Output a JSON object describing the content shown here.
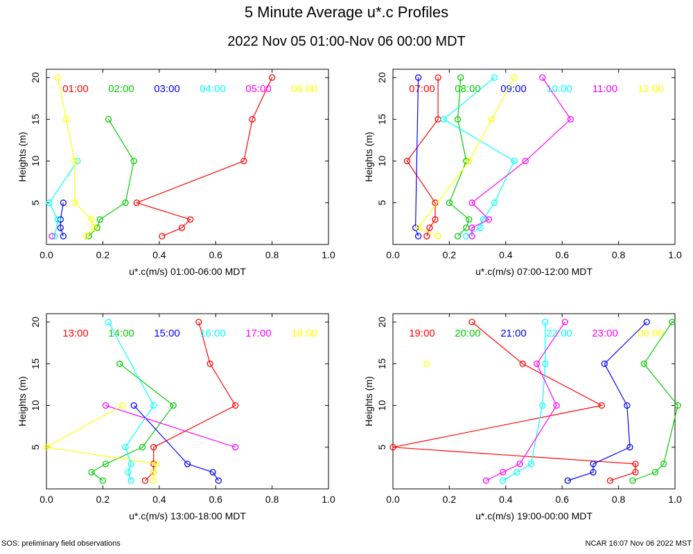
{
  "title": "5 Minute Average u*.c Profiles",
  "subtitle": "2022 Nov 05 01:00-Nov 06 00:00 MDT",
  "footer": {
    "left": "SOS: preliminary field observations",
    "right": "NCAR 16:07 Nov 06 2022 MST"
  },
  "chart_data": [
    {
      "type": "line",
      "xlabel": "u*.c(m/s) 01:00-06:00 MDT",
      "ylabel": "Heights (m)",
      "xlim": [
        0,
        1.0
      ],
      "ylim": [
        0,
        21
      ],
      "xticks": [
        "0.0",
        "0.2",
        "0.4",
        "0.6",
        "0.8",
        "1.0"
      ],
      "yticks": [
        "5",
        "10",
        "15",
        "20"
      ],
      "series": [
        {
          "name": "01:00",
          "color": "#ff0000",
          "points": [
            [
              0.41,
              1
            ],
            [
              0.48,
              2
            ],
            [
              0.51,
              3
            ],
            [
              0.32,
              5
            ],
            [
              0.7,
              10
            ],
            [
              0.73,
              15
            ],
            [
              0.8,
              20
            ]
          ]
        },
        {
          "name": "02:00",
          "color": "#00cc00",
          "points": [
            [
              0.15,
              1
            ],
            [
              0.18,
              2
            ],
            [
              0.19,
              3
            ],
            [
              0.28,
              5
            ],
            [
              0.31,
              10
            ],
            [
              0.22,
              15
            ]
          ]
        },
        {
          "name": "03:00",
          "color": "#0000ff",
          "points": [
            [
              0.06,
              1
            ],
            [
              0.05,
              2
            ],
            [
              0.05,
              3
            ],
            [
              0.06,
              5
            ]
          ]
        },
        {
          "name": "04:00",
          "color": "#00ffff",
          "points": [
            [
              0.03,
              1
            ],
            [
              0.04,
              3
            ],
            [
              0.01,
              5
            ],
            [
              0.11,
              10
            ]
          ]
        },
        {
          "name": "05:00",
          "color": "#ff00ff",
          "points": [
            [
              0.02,
              1
            ]
          ]
        },
        {
          "name": "06:00",
          "color": "#ffff00",
          "points": [
            [
              0.14,
              1
            ],
            [
              0.17,
              2
            ],
            [
              0.16,
              3
            ],
            [
              0.1,
              5
            ],
            [
              0.1,
              10
            ],
            [
              0.07,
              15
            ],
            [
              0.04,
              20
            ]
          ]
        }
      ]
    },
    {
      "type": "line",
      "xlabel": "u*.c(m/s) 07:00-12:00 MDT",
      "ylabel": "Heights (m)",
      "xlim": [
        0,
        1.0
      ],
      "ylim": [
        0,
        21
      ],
      "xticks": [
        "0.0",
        "0.2",
        "0.4",
        "0.6",
        "0.8",
        "1.0"
      ],
      "yticks": [
        "5",
        "10",
        "15",
        "20"
      ],
      "series": [
        {
          "name": "07:00",
          "color": "#ff0000",
          "points": [
            [
              0.12,
              1
            ],
            [
              0.13,
              2
            ],
            [
              0.15,
              3
            ],
            [
              0.15,
              5
            ],
            [
              0.05,
              10
            ],
            [
              0.16,
              15
            ],
            [
              0.16,
              20
            ]
          ]
        },
        {
          "name": "08:00",
          "color": "#00cc00",
          "points": [
            [
              0.23,
              1
            ],
            [
              0.26,
              2
            ],
            [
              0.27,
              3
            ],
            [
              0.2,
              5
            ],
            [
              0.26,
              10
            ],
            [
              0.23,
              15
            ],
            [
              0.24,
              20
            ]
          ]
        },
        {
          "name": "09:00",
          "color": "#0000ff",
          "points": [
            [
              0.09,
              1
            ],
            [
              0.08,
              2
            ],
            [
              0.09,
              20
            ]
          ]
        },
        {
          "name": "10:00",
          "color": "#00ffff",
          "points": [
            [
              0.26,
              1
            ],
            [
              0.31,
              2
            ],
            [
              0.32,
              3
            ],
            [
              0.36,
              5
            ],
            [
              0.43,
              10
            ],
            [
              0.18,
              15
            ],
            [
              0.36,
              20
            ]
          ]
        },
        {
          "name": "11:00",
          "color": "#ff00ff",
          "points": [
            [
              0.28,
              1
            ],
            [
              0.28,
              2
            ],
            [
              0.34,
              3
            ],
            [
              0.28,
              5
            ],
            [
              0.47,
              10
            ],
            [
              0.63,
              15
            ],
            [
              0.53,
              20
            ]
          ]
        },
        {
          "name": "12:00",
          "color": "#ffff00",
          "points": [
            [
              0.16,
              1
            ],
            [
              0.09,
              2
            ],
            [
              0.27,
              10
            ],
            [
              0.35,
              15
            ],
            [
              0.43,
              20
            ]
          ]
        }
      ]
    },
    {
      "type": "line",
      "xlabel": "u*.c(m/s) 13:00-18:00 MDT",
      "ylabel": "Heights (m)",
      "xlim": [
        0,
        1.0
      ],
      "ylim": [
        0,
        21
      ],
      "xticks": [
        "0.0",
        "0.2",
        "0.4",
        "0.6",
        "0.8",
        "1.0"
      ],
      "yticks": [
        "5",
        "10",
        "15",
        "20"
      ],
      "series": [
        {
          "name": "13:00",
          "color": "#ff0000",
          "points": [
            [
              0.35,
              1
            ],
            [
              0.38,
              2
            ],
            [
              0.38,
              3
            ],
            [
              0.38,
              5
            ],
            [
              0.67,
              10
            ],
            [
              0.58,
              15
            ],
            [
              0.54,
              20
            ]
          ]
        },
        {
          "name": "14:00",
          "color": "#00cc00",
          "points": [
            [
              0.2,
              1
            ],
            [
              0.16,
              2
            ],
            [
              0.21,
              3
            ],
            [
              0.34,
              5
            ],
            [
              0.45,
              10
            ],
            [
              0.26,
              15
            ]
          ]
        },
        {
          "name": "15:00",
          "color": "#0000ff",
          "points": [
            [
              0.61,
              1
            ],
            [
              0.59,
              2
            ],
            [
              0.5,
              3
            ],
            [
              0.31,
              10
            ]
          ]
        },
        {
          "name": "16:00",
          "color": "#00ffff",
          "points": [
            [
              0.3,
              1
            ],
            [
              0.29,
              2
            ],
            [
              0.3,
              3
            ],
            [
              0.28,
              5
            ],
            [
              0.38,
              10
            ],
            [
              0.22,
              20
            ]
          ]
        },
        {
          "name": "17:00",
          "color": "#ff00ff",
          "points": [
            [
              0.67,
              5
            ],
            [
              0.21,
              10
            ]
          ]
        },
        {
          "name": "18:00",
          "color": "#ffff00",
          "points": [
            [
              0.38,
              1
            ],
            [
              0.38,
              2
            ],
            [
              0.39,
              3
            ],
            [
              0.0,
              5
            ],
            [
              0.27,
              10
            ]
          ]
        }
      ]
    },
    {
      "type": "line",
      "xlabel": "u*.c(m/s) 19:00-00:00 MDT",
      "ylabel": "Heights (m)",
      "xlim": [
        0,
        1.0
      ],
      "ylim": [
        0,
        21
      ],
      "xticks": [
        "0.0",
        "0.2",
        "0.4",
        "0.6",
        "0.8",
        "1.0"
      ],
      "yticks": [
        "5",
        "10",
        "15",
        "20"
      ],
      "series": [
        {
          "name": "19:00",
          "color": "#ff0000",
          "points": [
            [
              0.77,
              1
            ],
            [
              0.86,
              2
            ],
            [
              0.86,
              3
            ],
            [
              0.0,
              5
            ],
            [
              0.74,
              10
            ],
            [
              0.46,
              15
            ],
            [
              0.28,
              20
            ]
          ]
        },
        {
          "name": "20:00",
          "color": "#00cc00",
          "points": [
            [
              0.85,
              1
            ],
            [
              0.93,
              2
            ],
            [
              0.96,
              3
            ],
            [
              1.01,
              10
            ],
            [
              0.89,
              15
            ],
            [
              0.99,
              20
            ]
          ]
        },
        {
          "name": "21:00",
          "color": "#0000ff",
          "points": [
            [
              0.62,
              1
            ],
            [
              0.71,
              2
            ],
            [
              0.71,
              3
            ],
            [
              0.84,
              5
            ],
            [
              0.83,
              10
            ],
            [
              0.75,
              15
            ],
            [
              0.9,
              20
            ]
          ]
        },
        {
          "name": "22:00",
          "color": "#00ffff",
          "points": [
            [
              0.39,
              1
            ],
            [
              0.44,
              2
            ],
            [
              0.49,
              3
            ],
            [
              0.53,
              10
            ],
            [
              0.54,
              15
            ],
            [
              0.54,
              20
            ]
          ]
        },
        {
          "name": "23:00",
          "color": "#ff00ff",
          "points": [
            [
              0.33,
              1
            ],
            [
              0.39,
              2
            ],
            [
              0.45,
              3
            ],
            [
              0.58,
              10
            ],
            [
              0.51,
              15
            ],
            [
              0.61,
              20
            ]
          ]
        },
        {
          "name": "00:00",
          "color": "#ffff00",
          "points": [
            [
              0.12,
              15
            ]
          ]
        }
      ]
    }
  ]
}
